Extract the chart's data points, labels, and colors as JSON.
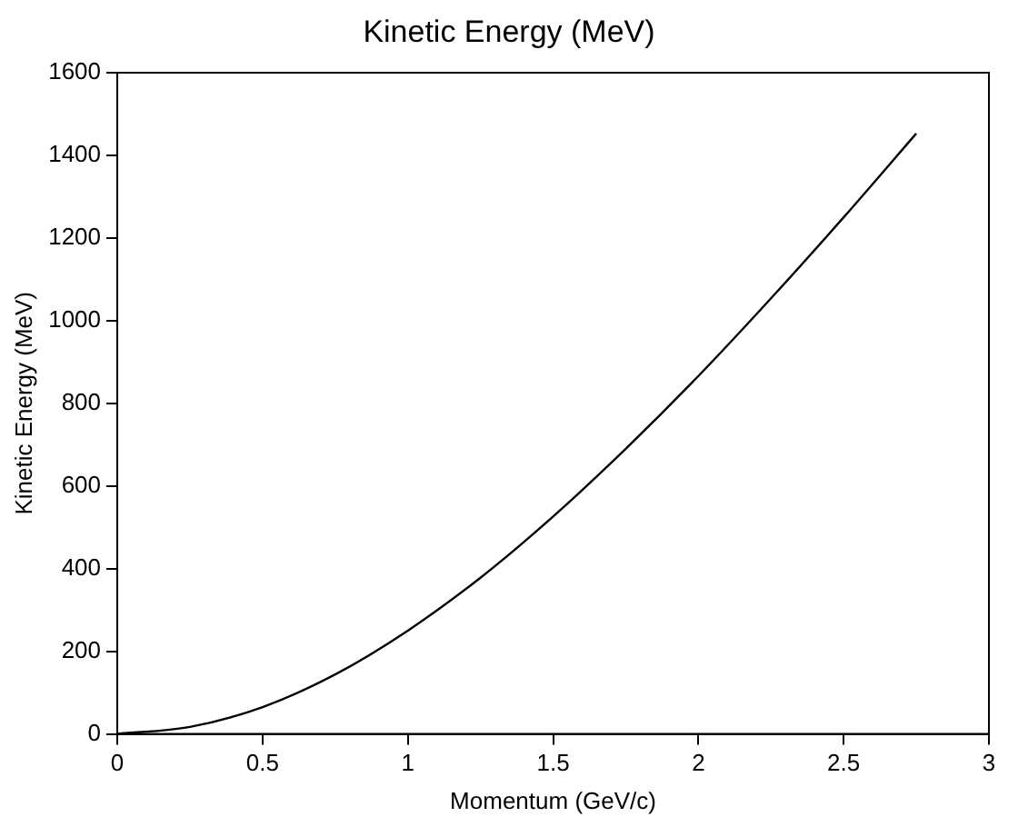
{
  "chart_data": {
    "type": "line",
    "title": "Kinetic Energy (MeV)",
    "xlabel": "Momentum (GeV/c)",
    "ylabel": "Kinetic Energy (MeV)",
    "x": [
      0,
      0.25,
      0.5,
      0.75,
      1.0,
      1.25,
      1.5,
      1.75,
      2.0,
      2.25,
      2.5,
      2.75
    ],
    "series": [
      {
        "color": "#000000",
        "values": [
          0,
          17,
          65,
          144,
          250,
          378,
          526,
          690,
          866,
          1054,
          1250,
          1453
        ]
      }
    ],
    "xlim": [
      0,
      3
    ],
    "xticks": [
      0,
      0.5,
      1,
      1.5,
      2,
      2.5,
      3
    ],
    "ylim": [
      0,
      1600
    ],
    "yticks": [
      0,
      200,
      400,
      600,
      800,
      1000,
      1200,
      1400,
      1600
    ],
    "grid": false,
    "legend": false,
    "marker": "none",
    "line_style": "solid"
  }
}
